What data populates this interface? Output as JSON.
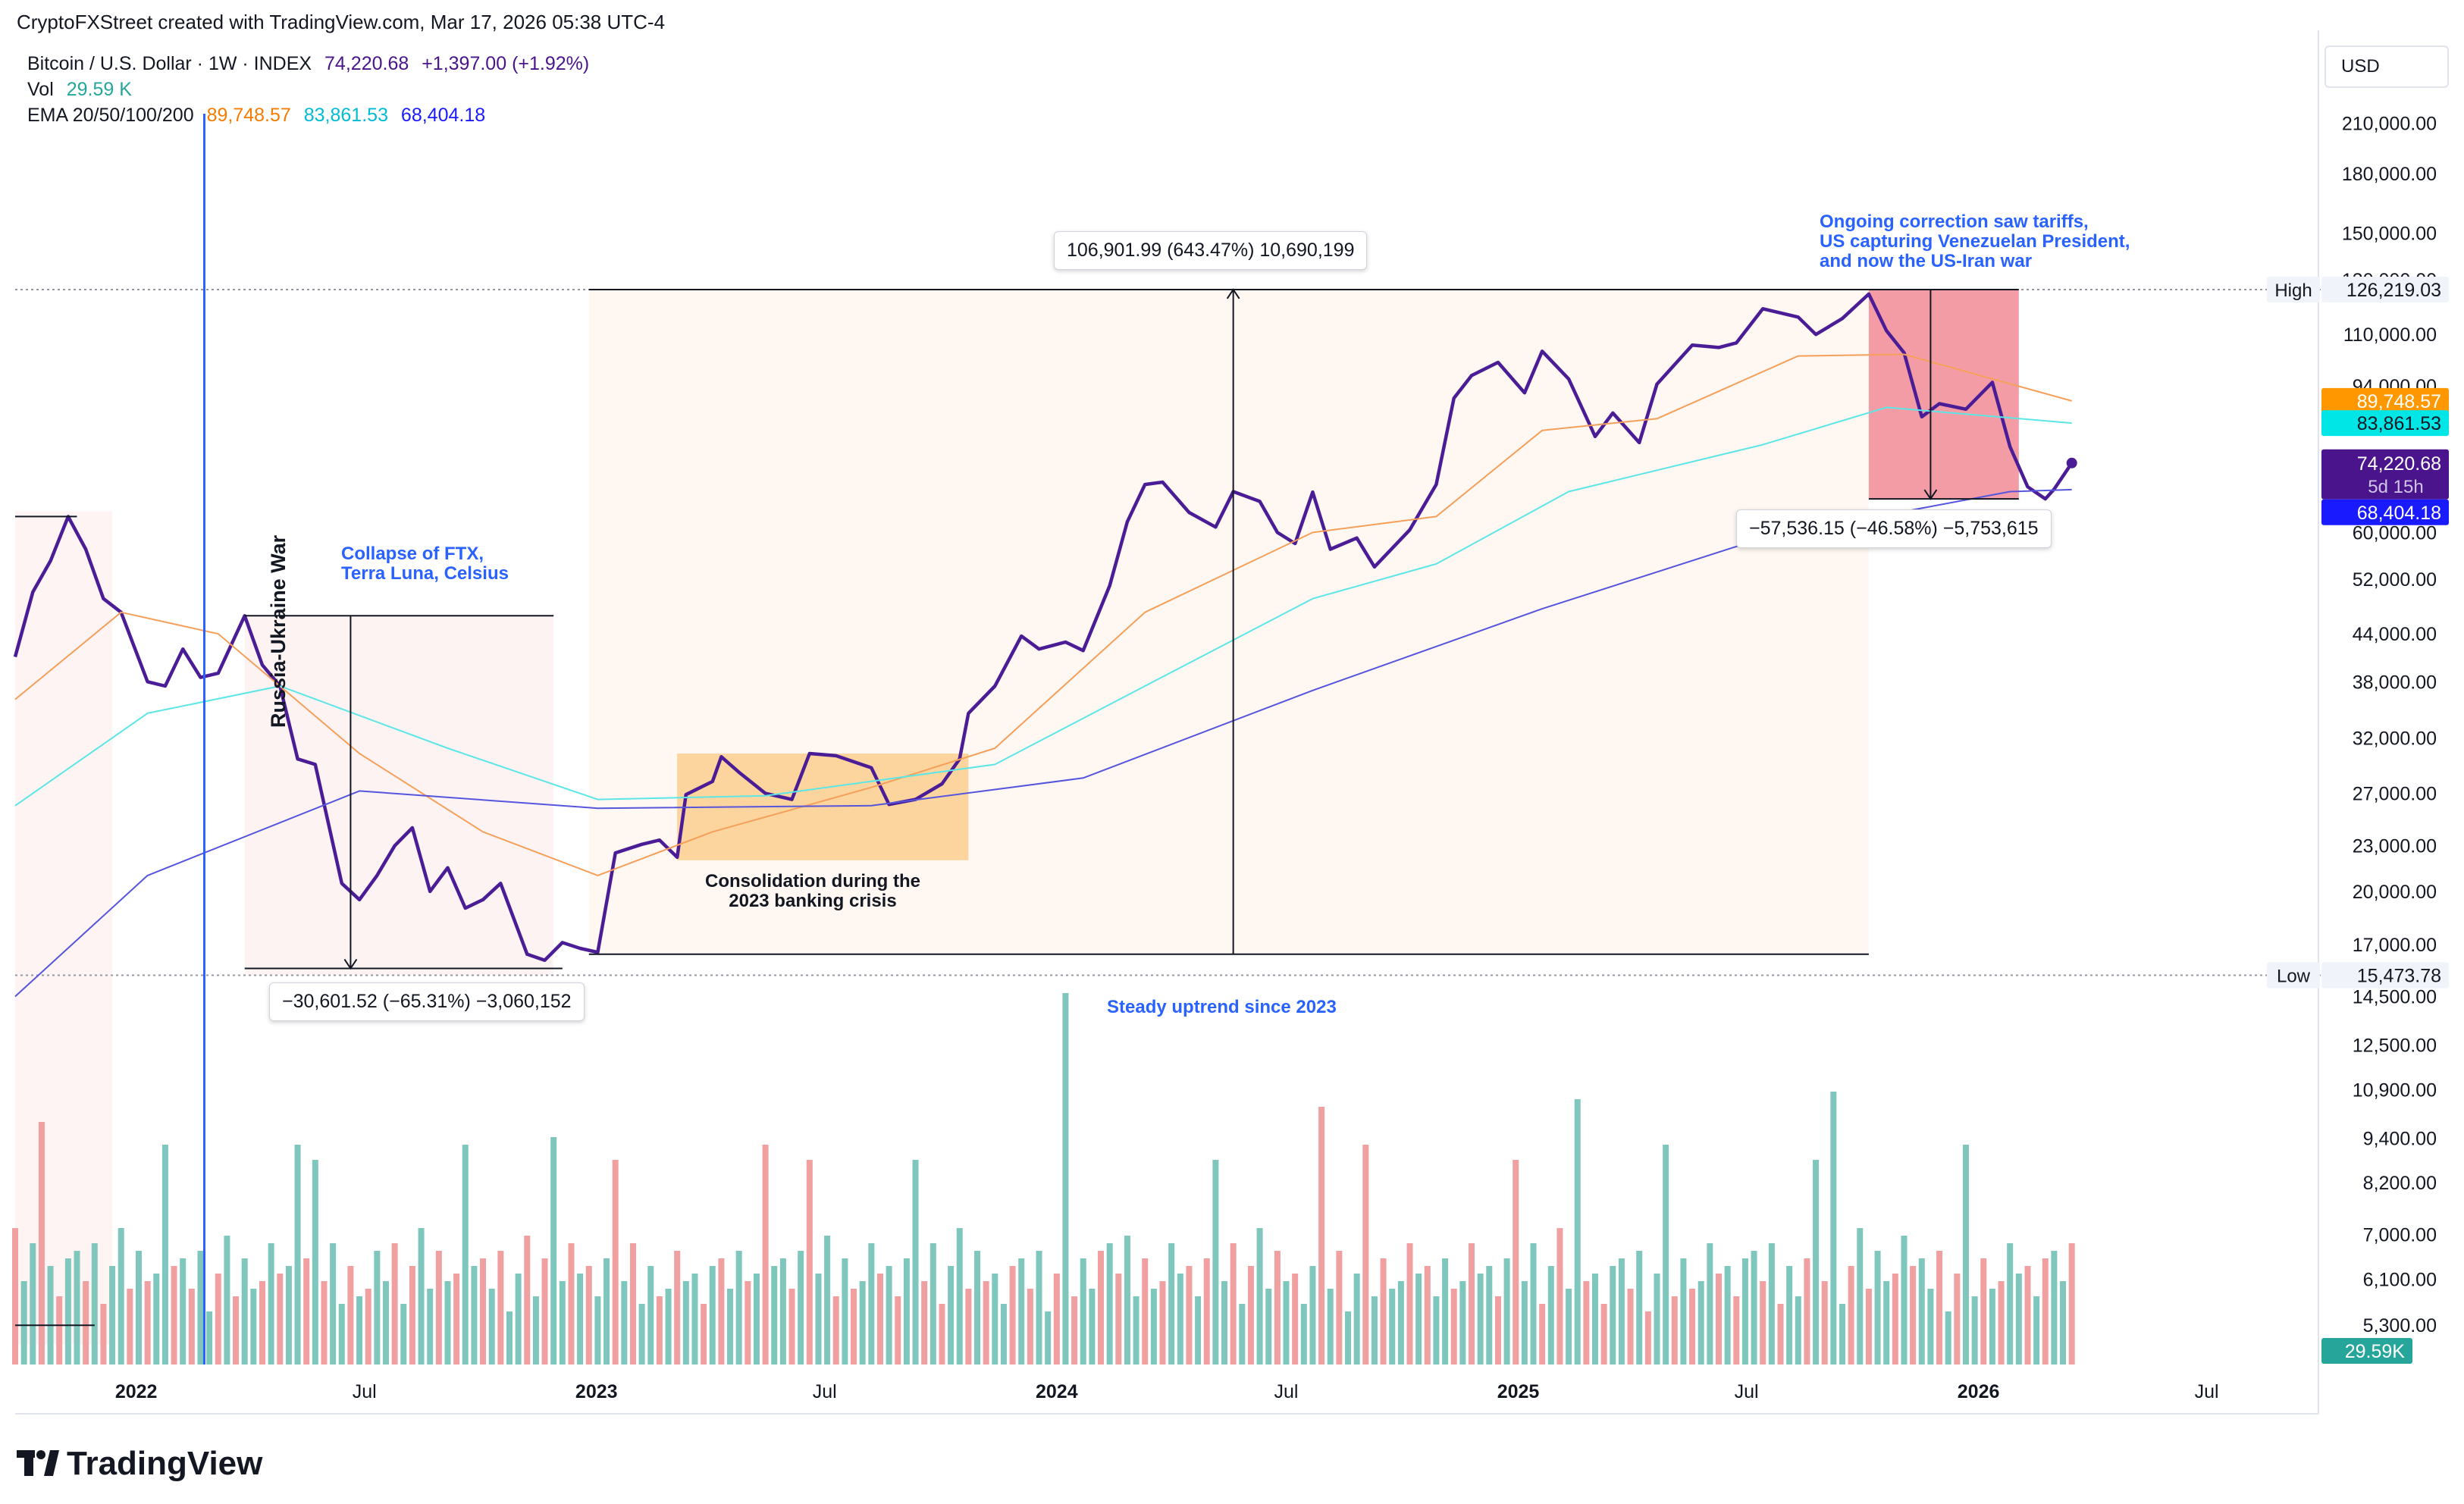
{
  "header": {
    "credit": "CryptoFXStreet created with TradingView.com, Mar 17, 2026 05:38 UTC-4",
    "symbol": "Bitcoin / U.S. Dollar · 1W · INDEX",
    "price": "74,220.68",
    "change": "+1,397.00 (+1.92%)",
    "vol_label": "Vol",
    "vol_value": "29.59 K",
    "ema_label": "EMA 20/50/100/200",
    "ema_values": [
      "89,748.57",
      "83,861.53",
      "68,404.18"
    ]
  },
  "axis": {
    "currency": "USD",
    "y_ticks": [
      "210,000.00",
      "180,000.00",
      "150,000.00",
      "130,000.00",
      "110,000.00",
      "94,000.00",
      "60,000.00",
      "52,000.00",
      "44,000.00",
      "38,000.00",
      "32,000.00",
      "27,000.00",
      "23,000.00",
      "20,000.00",
      "17,000.00",
      "14,500.00",
      "12,500.00",
      "10,900.00",
      "9,400.00",
      "8,200.00",
      "7,000.00",
      "6,100.00",
      "5,300.00"
    ],
    "x_ticks": [
      "2022",
      "Jul",
      "2023",
      "Jul",
      "2024",
      "Jul",
      "2025",
      "Jul",
      "2026",
      "Jul"
    ],
    "badges": {
      "high_label": "High",
      "high_value": "126,219.03",
      "low_label": "Low",
      "low_value": "15,473.78",
      "ema20": "89,748.57",
      "ema50": "83,861.53",
      "price": "74,220.68",
      "countdown": "5d 15h",
      "ema200": "68,404.18",
      "volume": "29.59K"
    }
  },
  "annotations": {
    "war": "Russia-Ukraine War",
    "ftx": "Collapse of FTX,\nTerra Luna, Celsius",
    "banking": "Consolidation during the\n2023 banking crisis",
    "uptrend": "Steady uptrend since 2023",
    "correction": "Ongoing correction saw tariffs,\nUS capturing Venezuelan President,\nand now the US-Iran war",
    "measure_up": "106,901.99 (643.47%) 10,690,199",
    "measure_down1": "−30,601.52 (−65.31%) −3,060,152",
    "measure_down2": "−57,536.15 (−46.58%) −5,753,615"
  },
  "brand": {
    "name": "TradingView"
  },
  "colors": {
    "price": "#4a1d96",
    "ema20": "#f5a05a",
    "ema50": "#5ce6e6",
    "ema200": "#5555dd",
    "vol_up": "#7fc7bd",
    "vol_down": "#f0a0a0",
    "war_line": "#2962ff"
  },
  "chart_data": {
    "type": "line",
    "title": "Bitcoin / U.S. Dollar · 1W · INDEX",
    "y_scale": "log",
    "x_range": [
      "2021-09-27",
      "2026-09-30"
    ],
    "ylim": [
      4700,
      240000
    ],
    "grid": false,
    "series": [
      {
        "name": "Bitcoin / U.S. Dollar",
        "points": [
          [
            "2021-09-27",
            41000
          ],
          [
            "2021-10-11",
            50000
          ],
          [
            "2021-10-25",
            55000
          ],
          [
            "2021-11-08",
            63000
          ],
          [
            "2021-11-22",
            57000
          ],
          [
            "2021-12-06",
            49000
          ],
          [
            "2021-12-20",
            47000
          ],
          [
            "2022-01-10",
            38000
          ],
          [
            "2022-01-24",
            37500
          ],
          [
            "2022-02-07",
            42000
          ],
          [
            "2022-02-21",
            38500
          ],
          [
            "2022-03-07",
            39000
          ],
          [
            "2022-03-28",
            46500
          ],
          [
            "2022-04-11",
            40000
          ],
          [
            "2022-04-25",
            37500
          ],
          [
            "2022-05-09",
            30000
          ],
          [
            "2022-05-23",
            29500
          ],
          [
            "2022-06-13",
            20500
          ],
          [
            "2022-06-27",
            19500
          ],
          [
            "2022-07-11",
            21000
          ],
          [
            "2022-07-25",
            23000
          ],
          [
            "2022-08-08",
            24300
          ],
          [
            "2022-08-22",
            20000
          ],
          [
            "2022-09-05",
            21500
          ],
          [
            "2022-09-19",
            19000
          ],
          [
            "2022-10-03",
            19500
          ],
          [
            "2022-10-17",
            20500
          ],
          [
            "2022-11-07",
            16500
          ],
          [
            "2022-11-21",
            16200
          ],
          [
            "2022-12-05",
            17100
          ],
          [
            "2022-12-19",
            16800
          ],
          [
            "2023-01-02",
            16600
          ],
          [
            "2023-01-16",
            22500
          ],
          [
            "2023-02-06",
            23100
          ],
          [
            "2023-02-20",
            23400
          ],
          [
            "2023-03-06",
            22200
          ],
          [
            "2023-03-13",
            26900
          ],
          [
            "2023-04-03",
            28000
          ],
          [
            "2023-04-10",
            30200
          ],
          [
            "2023-04-24",
            28800
          ],
          [
            "2023-05-15",
            27000
          ],
          [
            "2023-06-05",
            26500
          ],
          [
            "2023-06-19",
            30500
          ],
          [
            "2023-07-10",
            30300
          ],
          [
            "2023-08-07",
            29200
          ],
          [
            "2023-08-21",
            26100
          ],
          [
            "2023-09-11",
            26500
          ],
          [
            "2023-10-02",
            27800
          ],
          [
            "2023-10-16",
            30000
          ],
          [
            "2023-10-23",
            34500
          ],
          [
            "2023-11-13",
            37500
          ],
          [
            "2023-12-04",
            43700
          ],
          [
            "2023-12-18",
            42000
          ],
          [
            "2024-01-08",
            42900
          ],
          [
            "2024-01-22",
            41800
          ],
          [
            "2024-02-12",
            51000
          ],
          [
            "2024-02-26",
            62000
          ],
          [
            "2024-03-11",
            69500
          ],
          [
            "2024-03-25",
            70000
          ],
          [
            "2024-04-15",
            63800
          ],
          [
            "2024-05-06",
            61000
          ],
          [
            "2024-05-20",
            68000
          ],
          [
            "2024-06-10",
            66000
          ],
          [
            "2024-06-24",
            60000
          ],
          [
            "2024-07-08",
            58000
          ],
          [
            "2024-07-22",
            67900
          ],
          [
            "2024-08-05",
            57000
          ],
          [
            "2024-08-26",
            59000
          ],
          [
            "2024-09-09",
            54000
          ],
          [
            "2024-10-07",
            60500
          ],
          [
            "2024-10-28",
            69500
          ],
          [
            "2024-11-11",
            90500
          ],
          [
            "2024-11-25",
            97000
          ],
          [
            "2024-12-16",
            101000
          ],
          [
            "2025-01-06",
            92000
          ],
          [
            "2025-01-20",
            104500
          ],
          [
            "2025-02-10",
            96000
          ],
          [
            "2025-03-03",
            80500
          ],
          [
            "2025-03-17",
            86500
          ],
          [
            "2025-04-07",
            79000
          ],
          [
            "2025-04-21",
            94500
          ],
          [
            "2025-05-19",
            106500
          ],
          [
            "2025-06-09",
            105700
          ],
          [
            "2025-06-23",
            107200
          ],
          [
            "2025-07-14",
            119000
          ],
          [
            "2025-07-28",
            117500
          ],
          [
            "2025-08-11",
            116000
          ],
          [
            "2025-08-25",
            110000
          ],
          [
            "2025-09-15",
            115500
          ],
          [
            "2025-10-06",
            124500
          ],
          [
            "2025-10-20",
            111300
          ],
          [
            "2025-11-03",
            104000
          ],
          [
            "2025-11-17",
            85500
          ],
          [
            "2025-12-01",
            89000
          ],
          [
            "2025-12-22",
            87500
          ],
          [
            "2026-01-12",
            95000
          ],
          [
            "2026-01-26",
            78000
          ],
          [
            "2026-02-09",
            69000
          ],
          [
            "2026-02-23",
            66500
          ],
          [
            "2026-03-02",
            68500
          ],
          [
            "2026-03-16",
            74220.68
          ]
        ]
      },
      {
        "name": "EMA 20",
        "points": [
          [
            "2021-09-27",
            36000
          ],
          [
            "2021-12-20",
            47000
          ],
          [
            "2022-03-07",
            44000
          ],
          [
            "2022-06-27",
            30500
          ],
          [
            "2022-10-03",
            24000
          ],
          [
            "2023-01-02",
            21000
          ],
          [
            "2023-04-03",
            24000
          ],
          [
            "2023-08-07",
            27500
          ],
          [
            "2023-11-13",
            31000
          ],
          [
            "2024-03-11",
            47000
          ],
          [
            "2024-07-22",
            60000
          ],
          [
            "2024-10-28",
            63000
          ],
          [
            "2025-01-20",
            82000
          ],
          [
            "2025-04-21",
            85000
          ],
          [
            "2025-08-11",
            103000
          ],
          [
            "2025-11-03",
            103500
          ],
          [
            "2026-03-16",
            89748.57
          ]
        ]
      },
      {
        "name": "EMA 50",
        "points": [
          [
            "2021-09-27",
            26000
          ],
          [
            "2022-01-10",
            34500
          ],
          [
            "2022-04-25",
            37500
          ],
          [
            "2022-09-05",
            31000
          ],
          [
            "2023-01-02",
            26500
          ],
          [
            "2023-05-15",
            26800
          ],
          [
            "2023-11-13",
            29500
          ],
          [
            "2024-03-11",
            37500
          ],
          [
            "2024-07-22",
            49000
          ],
          [
            "2024-10-28",
            54500
          ],
          [
            "2025-02-10",
            68000
          ],
          [
            "2025-07-14",
            78500
          ],
          [
            "2025-10-20",
            88000
          ],
          [
            "2026-03-16",
            83861.53
          ]
        ]
      },
      {
        "name": "EMA 200",
        "points": [
          [
            "2021-09-27",
            14500
          ],
          [
            "2022-01-10",
            21000
          ],
          [
            "2022-06-27",
            27200
          ],
          [
            "2023-01-02",
            25800
          ],
          [
            "2023-08-07",
            26000
          ],
          [
            "2024-01-22",
            28300
          ],
          [
            "2024-07-22",
            37000
          ],
          [
            "2025-01-20",
            47500
          ],
          [
            "2025-07-14",
            59000
          ],
          [
            "2026-01-26",
            68000
          ],
          [
            "2026-03-16",
            68404.18
          ]
        ]
      }
    ]
  }
}
